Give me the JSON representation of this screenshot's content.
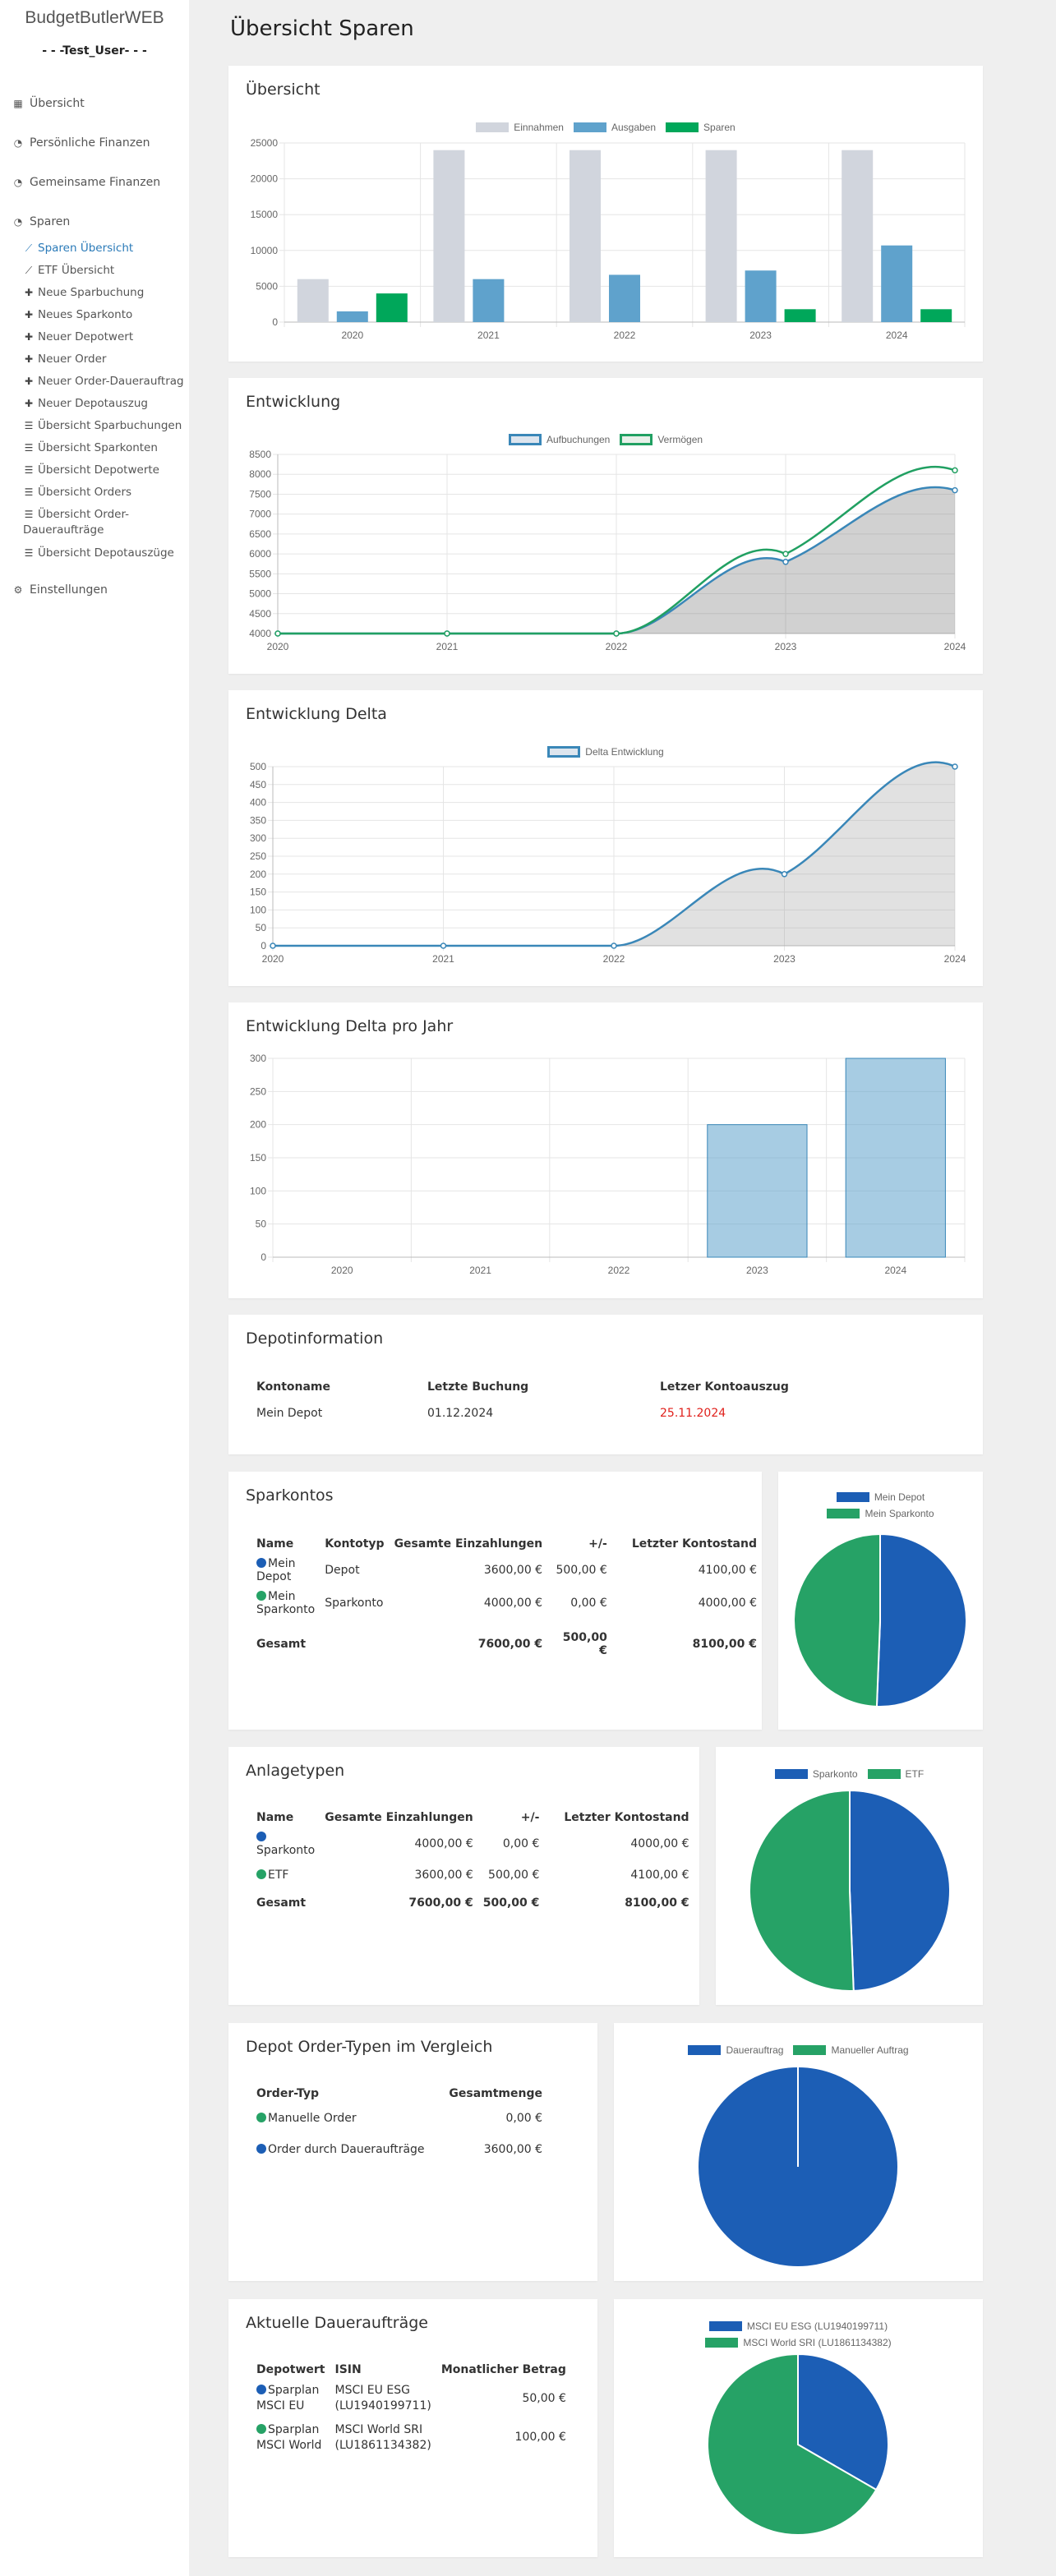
{
  "sidebar": {
    "brand": "BudgetButlerWEB",
    "user": "- - -Test_User- - -",
    "items": [
      {
        "label": "Übersicht",
        "icon": "grid-icon"
      },
      {
        "label": "Persönliche Finanzen",
        "icon": "dashboard-icon"
      },
      {
        "label": "Gemeinsame Finanzen",
        "icon": "dashboard-icon"
      },
      {
        "label": "Sparen",
        "icon": "dashboard-icon"
      },
      {
        "label": "Einstellungen",
        "icon": "gears-icon"
      }
    ],
    "sub_items": [
      {
        "label": "Sparen Übersicht",
        "icon": "line-chart-icon"
      },
      {
        "label": "ETF Übersicht",
        "icon": "line-chart-icon"
      },
      {
        "label": "Neue Sparbuchung",
        "icon": "plus-icon"
      },
      {
        "label": "Neues Sparkonto",
        "icon": "plus-icon"
      },
      {
        "label": "Neuer Depotwert",
        "icon": "plus-icon"
      },
      {
        "label": "Neuer Order",
        "icon": "plus-icon"
      },
      {
        "label": "Neuer Order-Dauerauftrag",
        "icon": "plus-icon"
      },
      {
        "label": "Neuer Depotauszug",
        "icon": "plus-icon"
      },
      {
        "label": "Übersicht Sparbuchungen",
        "icon": "list-icon"
      },
      {
        "label": "Übersicht Sparkonten",
        "icon": "list-icon"
      },
      {
        "label": "Übersicht Depotwerte",
        "icon": "list-icon"
      },
      {
        "label": "Übersicht Orders",
        "icon": "list-icon"
      },
      {
        "label": "Übersicht Order-Daueraufträge",
        "icon": "list-icon"
      },
      {
        "label": "Übersicht Depotauszüge",
        "icon": "list-icon"
      }
    ]
  },
  "page": {
    "title": "Übersicht Sparen"
  },
  "colors": {
    "gray": "#d1d5dd",
    "blue": "#5fa2cc",
    "green": "#00a75a",
    "dark_blue": "#1c5eb5",
    "pie_green": "#26a266",
    "line_blue": "#3a87b8",
    "line_green": "#21a062"
  },
  "charts": {
    "overview": {
      "title": "Übersicht",
      "chart_data": {
        "type": "bar",
        "categories": [
          "2020",
          "2021",
          "2022",
          "2023",
          "2024"
        ],
        "series": [
          {
            "name": "Einnahmen",
            "values": [
              6000,
              24000,
              24000,
              24000,
              24000
            ]
          },
          {
            "name": "Ausgaben",
            "values": [
              1500,
              6000,
              6600,
              7200,
              10700
            ]
          },
          {
            "name": "Sparen",
            "values": [
              4000,
              0,
              0,
              1800,
              1800
            ]
          }
        ],
        "ylim": [
          0,
          25000
        ],
        "yticks": [
          0,
          5000,
          10000,
          15000,
          20000,
          25000
        ],
        "legend": "top"
      }
    },
    "development": {
      "title": "Entwicklung",
      "chart_data": {
        "type": "area",
        "categories": [
          "2020",
          "2021",
          "2022",
          "2023",
          "2024"
        ],
        "series": [
          {
            "name": "Aufbuchungen",
            "values": [
              4000,
              4000,
              4000,
              5800,
              7600
            ]
          },
          {
            "name": "Vermögen",
            "values": [
              4000,
              4000,
              4000,
              6000,
              8100
            ]
          }
        ],
        "ylim": [
          4000,
          8500
        ],
        "yticks": [
          4000,
          4500,
          5000,
          5500,
          6000,
          6500,
          7000,
          7500,
          8000,
          8500
        ],
        "legend": "top"
      }
    },
    "delta": {
      "title": "Entwicklung Delta",
      "chart_data": {
        "type": "area",
        "categories": [
          "2020",
          "2021",
          "2022",
          "2023",
          "2024"
        ],
        "series": [
          {
            "name": "Delta Entwicklung",
            "values": [
              0,
              0,
              0,
              200,
              500
            ]
          }
        ],
        "ylim": [
          0,
          500
        ],
        "yticks": [
          0,
          50,
          100,
          150,
          200,
          250,
          300,
          350,
          400,
          450,
          500
        ],
        "legend": "top"
      }
    },
    "delta_year": {
      "title": "Entwicklung Delta pro Jahr",
      "chart_data": {
        "type": "bar",
        "categories": [
          "2020",
          "2021",
          "2022",
          "2023",
          "2024"
        ],
        "values": [
          0,
          0,
          0,
          200,
          300
        ],
        "ylim": [
          0,
          300
        ],
        "yticks": [
          0,
          50,
          100,
          150,
          200,
          250,
          300
        ]
      }
    },
    "pie_sparkontos": {
      "chart_data": {
        "type": "pie",
        "labels": [
          "Mein Depot",
          "Mein Sparkonto"
        ],
        "values": [
          4100,
          4000
        ]
      }
    },
    "pie_anlagetypen": {
      "chart_data": {
        "type": "pie",
        "labels": [
          "Sparkonto",
          "ETF"
        ],
        "values": [
          4000,
          4100
        ]
      }
    },
    "pie_ordertypen": {
      "chart_data": {
        "type": "pie",
        "labels": [
          "Dauerauftrag",
          "Manueller Auftrag"
        ],
        "values": [
          3600,
          0
        ]
      }
    },
    "pie_dauerauftraege": {
      "chart_data": {
        "type": "pie",
        "labels": [
          "MSCI EU ESG (LU1940199711)",
          "MSCI World SRI (LU1861134382)"
        ],
        "values": [
          50,
          100
        ]
      }
    }
  },
  "depot": {
    "title": "Depotinformation",
    "headers": [
      "Kontoname",
      "Letzte Buchung",
      "Letzer Kontoauszug"
    ],
    "rows": [
      {
        "name": "Mein Depot",
        "last_booking": "01.12.2024",
        "last_statement": "25.11.2024"
      }
    ]
  },
  "sparkontos": {
    "title": "Sparkontos",
    "headers": [
      "Name",
      "Kontotyp",
      "Gesamte Einzahlungen",
      "+/-",
      "Letzter Kontostand"
    ],
    "rows": [
      {
        "name": "Mein Depot",
        "type": "Depot",
        "deposits": "3600,00 €",
        "diff": "500,00 €",
        "balance": "4100,00 €"
      },
      {
        "name": "Mein Sparkonto",
        "type": "Sparkonto",
        "deposits": "4000,00 €",
        "diff": "0,00 €",
        "balance": "4000,00 €"
      }
    ],
    "total": {
      "label": "Gesamt",
      "deposits": "7600,00 €",
      "diff": "500,00 €",
      "balance": "8100,00 €"
    }
  },
  "anlagetypen": {
    "title": "Anlagetypen",
    "headers": [
      "Name",
      "Gesamte Einzahlungen",
      "+/-",
      "Letzter Kontostand"
    ],
    "rows": [
      {
        "name": "Sparkonto",
        "deposits": "4000,00 €",
        "diff": "0,00 €",
        "balance": "4000,00 €"
      },
      {
        "name": "ETF",
        "deposits": "3600,00 €",
        "diff": "500,00 €",
        "balance": "4100,00 €"
      }
    ],
    "total": {
      "label": "Gesamt",
      "deposits": "7600,00 €",
      "diff": "500,00 €",
      "balance": "8100,00 €"
    }
  },
  "ordertypen": {
    "title": "Depot Order-Typen im Vergleich",
    "headers": [
      "Order-Typ",
      "Gesamtmenge"
    ],
    "rows": [
      {
        "name": "Manuelle Order",
        "amount": "0,00 €"
      },
      {
        "name": "Order durch Daueraufträge",
        "amount": "3600,00 €"
      }
    ]
  },
  "dauerauftraege": {
    "title": "Aktuelle Daueraufträge",
    "headers": [
      "Depotwert",
      "ISIN",
      "Monatlicher Betrag"
    ],
    "rows": [
      {
        "name_1": "Sparplan",
        "name_2": "MSCI EU",
        "isin_1": "MSCI EU ESG",
        "isin_2": "(LU1940199711)",
        "amount": "50,00 €"
      },
      {
        "name_1": "Sparplan",
        "name_2": "MSCI World",
        "isin_1": "MSCI World SRI",
        "isin_2": "(LU1861134382)",
        "amount": "100,00 €"
      }
    ]
  }
}
